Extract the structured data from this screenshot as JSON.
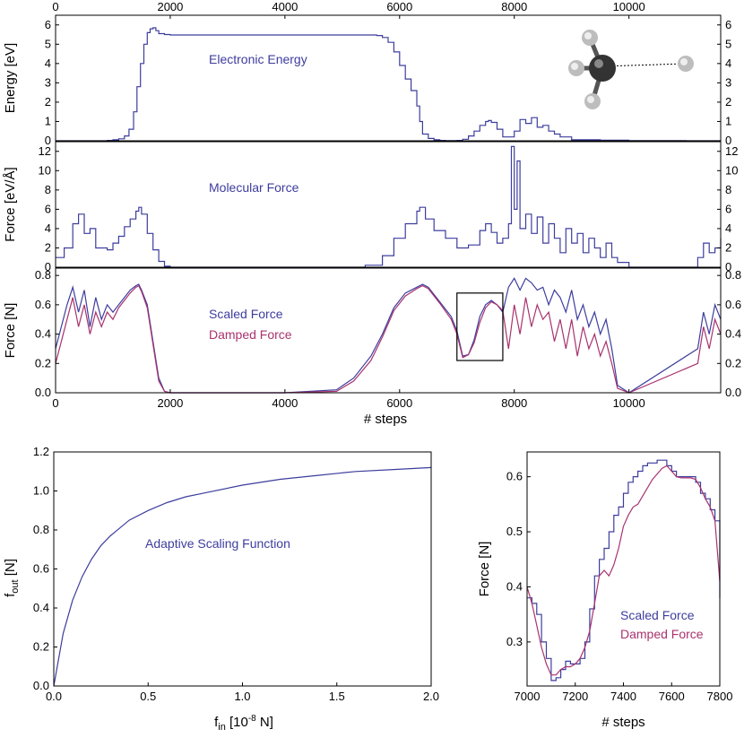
{
  "colors": {
    "blue": "#3d3d9e",
    "magenta": "#a8336e",
    "axis": "#000000"
  },
  "chart_data": [
    {
      "id": "energy",
      "type": "line",
      "title": "",
      "annotation": "Electronic Energy",
      "xlabel": "",
      "ylabel": "Energy [eV]",
      "xlim": [
        0,
        11600
      ],
      "ylim": [
        0,
        6.5
      ],
      "xticks_top": [
        0,
        2000,
        4000,
        6000,
        8000,
        10000
      ],
      "yticks": [
        0,
        1,
        2,
        3,
        4,
        5,
        6
      ],
      "inset_icon": "molecule-ch4-h-icon",
      "series": [
        {
          "color": "#3d3d9e",
          "x": [
            0,
            700,
            900,
            1000,
            1100,
            1200,
            1280,
            1360,
            1420,
            1480,
            1540,
            1600,
            1650,
            1700,
            1750,
            1800,
            1900,
            2000,
            3000,
            4000,
            5000,
            5600,
            5700,
            5800,
            5900,
            6000,
            6100,
            6200,
            6300,
            6350,
            6400,
            6500,
            6600,
            6700,
            6800,
            6900,
            7000,
            7100,
            7200,
            7300,
            7400,
            7500,
            7550,
            7600,
            7700,
            7800,
            8000,
            8100,
            8200,
            8300,
            8400,
            8500,
            8600,
            8700,
            8800,
            9000,
            9500,
            10000,
            11000,
            11600
          ],
          "y": [
            0,
            0,
            0.02,
            0.05,
            0.1,
            0.25,
            0.6,
            1.5,
            2.8,
            4.0,
            5.0,
            5.6,
            5.8,
            5.85,
            5.7,
            5.55,
            5.5,
            5.48,
            5.48,
            5.48,
            5.48,
            5.45,
            5.35,
            5.1,
            4.6,
            3.9,
            3.2,
            2.6,
            1.8,
            1.0,
            0.35,
            0.12,
            0.05,
            0.02,
            0.01,
            0.01,
            0.02,
            0.08,
            0.25,
            0.5,
            0.8,
            1.0,
            1.05,
            0.95,
            0.6,
            0.2,
            0.5,
            1.1,
            0.9,
            1.2,
            0.7,
            0.8,
            0.5,
            0.35,
            0.2,
            0.05,
            0.03,
            0.01,
            0,
            0
          ]
        }
      ]
    },
    {
      "id": "force",
      "type": "line",
      "title": "",
      "annotation": "Molecular Force",
      "xlabel": "",
      "ylabel": "Force [eV/Å]",
      "xlim": [
        0,
        11600
      ],
      "ylim": [
        0,
        13
      ],
      "yticks": [
        0,
        2,
        4,
        6,
        8,
        10,
        12
      ],
      "series": [
        {
          "color": "#3d3d9e",
          "x": [
            0,
            150,
            300,
            400,
            500,
            600,
            700,
            800,
            900,
            1000,
            1100,
            1200,
            1300,
            1400,
            1450,
            1500,
            1600,
            1700,
            1800,
            1900,
            2000,
            3000,
            4000,
            5000,
            5400,
            5700,
            5900,
            6100,
            6300,
            6350,
            6450,
            6600,
            6800,
            7000,
            7200,
            7400,
            7500,
            7600,
            7700,
            7800,
            7900,
            7950,
            8000,
            8050,
            8100,
            8200,
            8300,
            8400,
            8500,
            8600,
            8700,
            8800,
            8900,
            9000,
            9100,
            9200,
            9300,
            9400,
            9500,
            9600,
            9700,
            9800,
            10000,
            11000,
            11200,
            11300,
            11400,
            11500,
            11600
          ],
          "y": [
            1.0,
            2.0,
            4.5,
            5.5,
            3.5,
            4.0,
            2.0,
            2.0,
            1.8,
            2.5,
            3.2,
            4.2,
            5.0,
            5.8,
            6.2,
            5.5,
            3.5,
            1.8,
            0.6,
            0.1,
            0,
            0,
            0,
            0,
            0.2,
            1.2,
            3.0,
            4.5,
            5.8,
            6.2,
            5.0,
            3.8,
            3.0,
            2.0,
            2.3,
            3.8,
            4.5,
            3.6,
            2.5,
            3.0,
            4.5,
            12.5,
            6.0,
            11.0,
            4.0,
            5.5,
            3.5,
            5.2,
            2.5,
            4.5,
            3.0,
            1.5,
            4.0,
            2.5,
            3.5,
            1.5,
            3.0,
            2.0,
            1.0,
            2.5,
            1.0,
            0.5,
            0,
            0,
            1.0,
            2.5,
            1.5,
            2.0,
            3.0
          ]
        }
      ]
    },
    {
      "id": "scaled",
      "type": "line",
      "title": "",
      "xlabel": "# steps",
      "ylabel": "Force [N]",
      "xlim": [
        0,
        11600
      ],
      "ylim": [
        0,
        0.85
      ],
      "xticks": [
        0,
        2000,
        4000,
        6000,
        8000,
        10000
      ],
      "yticks": [
        0.0,
        0.2,
        0.4,
        0.6,
        0.8
      ],
      "legend": [
        "Scaled Force",
        "Damped Force"
      ],
      "zoom_box": {
        "x": [
          7000,
          7800
        ],
        "y": [
          0.22,
          0.68
        ]
      },
      "series": [
        {
          "name": "Scaled Force",
          "color": "#3d3d9e",
          "x": [
            0,
            100,
            200,
            300,
            400,
            500,
            600,
            700,
            800,
            900,
            1000,
            1100,
            1200,
            1300,
            1400,
            1450,
            1500,
            1600,
            1700,
            1800,
            1900,
            2000,
            4000,
            4900,
            5200,
            5500,
            5700,
            5900,
            6100,
            6300,
            6400,
            6500,
            6700,
            6900,
            7000,
            7100,
            7200,
            7300,
            7400,
            7500,
            7600,
            7700,
            7800,
            7900,
            8000,
            8100,
            8200,
            8300,
            8400,
            8500,
            8600,
            8700,
            8800,
            8900,
            9000,
            9100,
            9200,
            9300,
            9400,
            9500,
            9600,
            9700,
            9800,
            10000,
            11200,
            11300,
            11400,
            11500,
            11600
          ],
          "y": [
            0.3,
            0.45,
            0.6,
            0.72,
            0.55,
            0.7,
            0.45,
            0.65,
            0.5,
            0.6,
            0.55,
            0.6,
            0.65,
            0.7,
            0.73,
            0.74,
            0.7,
            0.6,
            0.35,
            0.1,
            0.01,
            0,
            0,
            0.02,
            0.1,
            0.25,
            0.4,
            0.58,
            0.68,
            0.72,
            0.74,
            0.72,
            0.62,
            0.52,
            0.42,
            0.25,
            0.26,
            0.36,
            0.52,
            0.6,
            0.63,
            0.6,
            0.55,
            0.72,
            0.78,
            0.7,
            0.78,
            0.75,
            0.7,
            0.72,
            0.6,
            0.7,
            0.65,
            0.55,
            0.7,
            0.5,
            0.6,
            0.45,
            0.55,
            0.4,
            0.5,
            0.3,
            0.05,
            0,
            0.3,
            0.55,
            0.4,
            0.6,
            0.5
          ]
        },
        {
          "name": "Damped Force",
          "color": "#a8336e",
          "x": [
            0,
            100,
            200,
            300,
            400,
            500,
            600,
            700,
            800,
            900,
            1000,
            1100,
            1200,
            1300,
            1400,
            1450,
            1500,
            1600,
            1700,
            1800,
            1900,
            2000,
            4000,
            4900,
            5200,
            5500,
            5700,
            5900,
            6100,
            6300,
            6400,
            6500,
            6700,
            6900,
            7000,
            7100,
            7200,
            7300,
            7400,
            7500,
            7600,
            7700,
            7800,
            7900,
            8000,
            8100,
            8200,
            8300,
            8400,
            8500,
            8600,
            8700,
            8800,
            8900,
            9000,
            9100,
            9200,
            9300,
            9400,
            9500,
            9600,
            9700,
            9800,
            10000,
            11200,
            11300,
            11400,
            11500,
            11600
          ],
          "y": [
            0.2,
            0.35,
            0.5,
            0.65,
            0.45,
            0.6,
            0.4,
            0.55,
            0.45,
            0.55,
            0.5,
            0.58,
            0.63,
            0.68,
            0.72,
            0.73,
            0.69,
            0.58,
            0.33,
            0.08,
            0.01,
            0,
            0,
            0.01,
            0.08,
            0.22,
            0.38,
            0.56,
            0.66,
            0.71,
            0.73,
            0.71,
            0.61,
            0.5,
            0.4,
            0.24,
            0.26,
            0.34,
            0.48,
            0.58,
            0.62,
            0.6,
            0.56,
            0.3,
            0.6,
            0.4,
            0.65,
            0.45,
            0.6,
            0.5,
            0.55,
            0.35,
            0.5,
            0.3,
            0.5,
            0.25,
            0.45,
            0.3,
            0.4,
            0.25,
            0.35,
            0.2,
            0.03,
            0,
            0.2,
            0.45,
            0.3,
            0.5,
            0.4
          ]
        }
      ]
    },
    {
      "id": "adaptive",
      "type": "line",
      "title": "",
      "annotation": "Adaptive Scaling Function",
      "xlabel": "f_in  [10^-8 N]",
      "ylabel": "f_out [N]",
      "xlim": [
        0,
        2.0
      ],
      "ylim": [
        0,
        1.2
      ],
      "xticks": [
        0.0,
        0.5,
        1.0,
        1.5,
        2.0
      ],
      "yticks": [
        0.0,
        0.2,
        0.4,
        0.6,
        0.8,
        1.0,
        1.2
      ],
      "series": [
        {
          "color": "#3d3d9e",
          "x": [
            0,
            0.05,
            0.1,
            0.15,
            0.2,
            0.25,
            0.3,
            0.4,
            0.5,
            0.6,
            0.7,
            0.8,
            1.0,
            1.2,
            1.4,
            1.6,
            1.8,
            2.0
          ],
          "y": [
            0,
            0.27,
            0.44,
            0.56,
            0.65,
            0.72,
            0.77,
            0.85,
            0.9,
            0.94,
            0.97,
            0.99,
            1.03,
            1.06,
            1.08,
            1.1,
            1.11,
            1.12
          ]
        }
      ]
    },
    {
      "id": "zoom",
      "type": "line",
      "title": "",
      "xlabel": "# steps",
      "ylabel": "Force [N]",
      "xlim": [
        7000,
        7800
      ],
      "ylim": [
        0.22,
        0.645
      ],
      "xticks": [
        7000,
        7200,
        7400,
        7600,
        7800
      ],
      "yticks": [
        0.3,
        0.4,
        0.5,
        0.6
      ],
      "legend": [
        "Scaled Force",
        "Damped Force"
      ],
      "series": [
        {
          "name": "Scaled Force",
          "color": "#3d3d9e",
          "x": [
            7000,
            7020,
            7040,
            7060,
            7080,
            7100,
            7120,
            7140,
            7160,
            7180,
            7200,
            7220,
            7240,
            7260,
            7280,
            7300,
            7320,
            7340,
            7360,
            7380,
            7400,
            7420,
            7440,
            7460,
            7480,
            7500,
            7520,
            7540,
            7560,
            7580,
            7600,
            7620,
            7640,
            7660,
            7680,
            7700,
            7720,
            7740,
            7760,
            7780,
            7800
          ],
          "y": [
            0.38,
            0.37,
            0.35,
            0.3,
            0.27,
            0.23,
            0.235,
            0.25,
            0.265,
            0.26,
            0.26,
            0.27,
            0.3,
            0.36,
            0.42,
            0.45,
            0.47,
            0.5,
            0.53,
            0.545,
            0.57,
            0.59,
            0.6,
            0.61,
            0.62,
            0.625,
            0.625,
            0.63,
            0.63,
            0.62,
            0.61,
            0.6,
            0.6,
            0.6,
            0.6,
            0.59,
            0.57,
            0.56,
            0.54,
            0.52,
            0.38
          ]
        },
        {
          "name": "Damped Force",
          "color": "#a8336e",
          "x": [
            7000,
            7020,
            7040,
            7060,
            7080,
            7100,
            7120,
            7140,
            7160,
            7180,
            7200,
            7220,
            7240,
            7260,
            7280,
            7300,
            7320,
            7340,
            7360,
            7380,
            7400,
            7420,
            7440,
            7460,
            7480,
            7500,
            7520,
            7540,
            7560,
            7580,
            7600,
            7620,
            7640,
            7660,
            7680,
            7700,
            7720,
            7740,
            7760,
            7780,
            7800
          ],
          "y": [
            0.4,
            0.37,
            0.33,
            0.29,
            0.26,
            0.24,
            0.24,
            0.25,
            0.255,
            0.255,
            0.26,
            0.27,
            0.29,
            0.32,
            0.37,
            0.42,
            0.43,
            0.42,
            0.44,
            0.47,
            0.51,
            0.53,
            0.545,
            0.55,
            0.565,
            0.58,
            0.595,
            0.605,
            0.615,
            0.62,
            0.61,
            0.6,
            0.598,
            0.598,
            0.598,
            0.595,
            0.58,
            0.56,
            0.545,
            0.52,
            0.41
          ]
        }
      ]
    }
  ]
}
